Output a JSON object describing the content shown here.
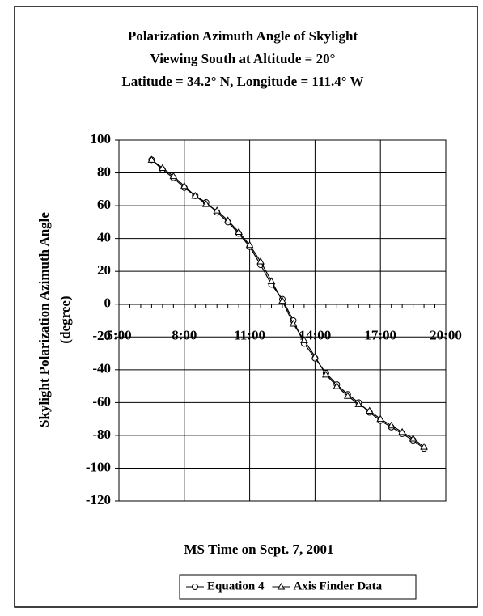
{
  "chart_data": {
    "type": "line",
    "title": [
      "Polarization Azimuth Angle of Skylight",
      "Viewing South at Altitude = 20°",
      "Latitude = 34.2° N, Longitude = 111.4° W"
    ],
    "x_label": "MS Time on Sept. 7, 2001",
    "y_label": [
      "Skylight Polarization Azimuth Angle",
      "(degree)"
    ],
    "x": [
      6.5,
      7,
      7.5,
      8,
      8.5,
      9,
      9.5,
      10,
      10.5,
      11,
      11.5,
      12,
      12.5,
      13,
      13.5,
      14,
      14.5,
      15,
      15.5,
      16,
      16.5,
      17,
      17.5,
      18,
      18.5,
      19
    ],
    "series": [
      {
        "name": "Equation 4",
        "color": "#000000",
        "marker": "circle",
        "values": [
          88,
          82,
          77,
          71,
          66,
          62,
          56,
          50,
          43,
          35,
          24,
          12,
          3,
          -10,
          -24,
          -33,
          -42,
          -49,
          -55,
          -60,
          -66,
          -71,
          -75,
          -79,
          -83,
          -88
        ]
      },
      {
        "name": "Axis Finder Data",
        "color": "#000000",
        "marker": "triangle",
        "values": [
          88,
          83,
          78,
          72,
          66,
          61,
          57,
          51,
          44,
          36,
          26,
          14,
          2,
          -12,
          -22,
          -32,
          -43,
          -50,
          -56,
          -61,
          -65,
          -70,
          -74,
          -78,
          -82,
          -87
        ]
      }
    ],
    "xlim": [
      5,
      20
    ],
    "xticks": [
      {
        "value": 5,
        "label": "5:00"
      },
      {
        "value": 8,
        "label": "8:00"
      },
      {
        "value": 11,
        "label": "11:00"
      },
      {
        "value": 14,
        "label": "14:00"
      },
      {
        "value": 17,
        "label": "17:00"
      },
      {
        "value": 20,
        "label": "20:00"
      }
    ],
    "ylim": [
      -120,
      100
    ],
    "yticks": [
      -120,
      -100,
      -80,
      -60,
      -40,
      -20,
      0,
      20,
      40,
      60,
      80,
      100
    ],
    "grid": true,
    "legend": "bottom"
  }
}
